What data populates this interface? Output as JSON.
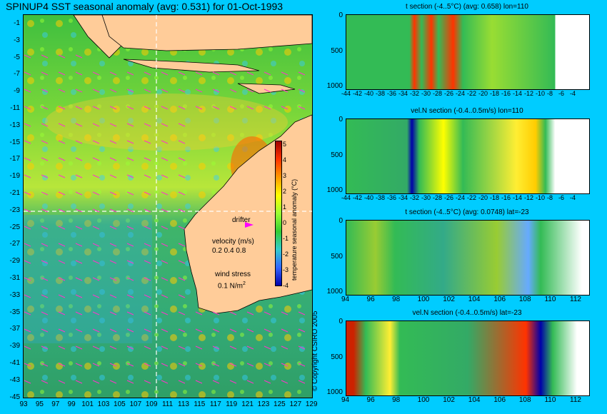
{
  "main_title": "SPINUP4 SST seasonal anomaly (avg: 0.531) for 01-Oct-1993",
  "map": {
    "lat_ticks": [
      "-1",
      "-3",
      "-5",
      "-7",
      "-9",
      "-11",
      "-13",
      "-15",
      "-17",
      "-19",
      "-21",
      "-23",
      "-25",
      "-27",
      "-29",
      "-31",
      "-33",
      "-35",
      "-37",
      "-39",
      "-41",
      "-43",
      "-45"
    ],
    "lon_ticks": [
      "93",
      "95",
      "97",
      "99",
      "101",
      "103",
      "105",
      "107",
      "109",
      "111",
      "113",
      "115",
      "117",
      "119",
      "121",
      "123",
      "125",
      "127",
      "129"
    ],
    "drifter_label": "drifter",
    "velocity_label": "velocity (m/s)",
    "velocity_values": "0.2 0.4 0.8",
    "wind_label": "wind stress",
    "wind_value": "0.1 N/m",
    "wind_exp": "2",
    "colorbar_label": "temperature seasonal anomaly (°C)",
    "colorbar_ticks": [
      "5",
      "4",
      "3",
      "2",
      "1",
      "0",
      "-1",
      "-2",
      "-3",
      "-4"
    ],
    "section_lon": 110,
    "section_lat": -23
  },
  "panels": [
    {
      "title": "t section (-4..5°C) (avg: 0.658) lon=110",
      "yticks": [
        "0",
        "500",
        "1000"
      ],
      "xticks": [
        "-44",
        "-42",
        "-40",
        "-38",
        "-36",
        "-34",
        "-32",
        "-30",
        "-28",
        "-26",
        "-24",
        "-22",
        "-20",
        "-18",
        "-16",
        "-14",
        "-12",
        "-10",
        "-8",
        "-6",
        "-4"
      ]
    },
    {
      "title": "vel.N section (-0.4..0.5m/s) lon=110",
      "yticks": [
        "0",
        "500",
        "1000"
      ],
      "xticks": [
        "-44",
        "-42",
        "-40",
        "-38",
        "-36",
        "-34",
        "-32",
        "-30",
        "-28",
        "-26",
        "-24",
        "-22",
        "-20",
        "-18",
        "-16",
        "-14",
        "-12",
        "-10",
        "-8",
        "-6",
        "-4"
      ]
    },
    {
      "title": "t section (-4..5°C) (avg: 0.0748) lat=-23",
      "yticks": [
        "0",
        "500",
        "1000"
      ],
      "xticks": [
        "94",
        "96",
        "98",
        "100",
        "102",
        "104",
        "106",
        "108",
        "110",
        "112"
      ]
    },
    {
      "title": "vel.N section (-0.4..0.5m/s) lat=-23",
      "yticks": [
        "0",
        "500",
        "1000"
      ],
      "xticks": [
        "94",
        "96",
        "98",
        "100",
        "102",
        "104",
        "106",
        "108",
        "110",
        "112"
      ]
    }
  ],
  "copyright": "© Copyright CSIRO 2005",
  "colors": {
    "background": "#00ccff",
    "land": "#ffcc99",
    "drifter": "#ff00ff",
    "vectors": "#ff33cc"
  }
}
